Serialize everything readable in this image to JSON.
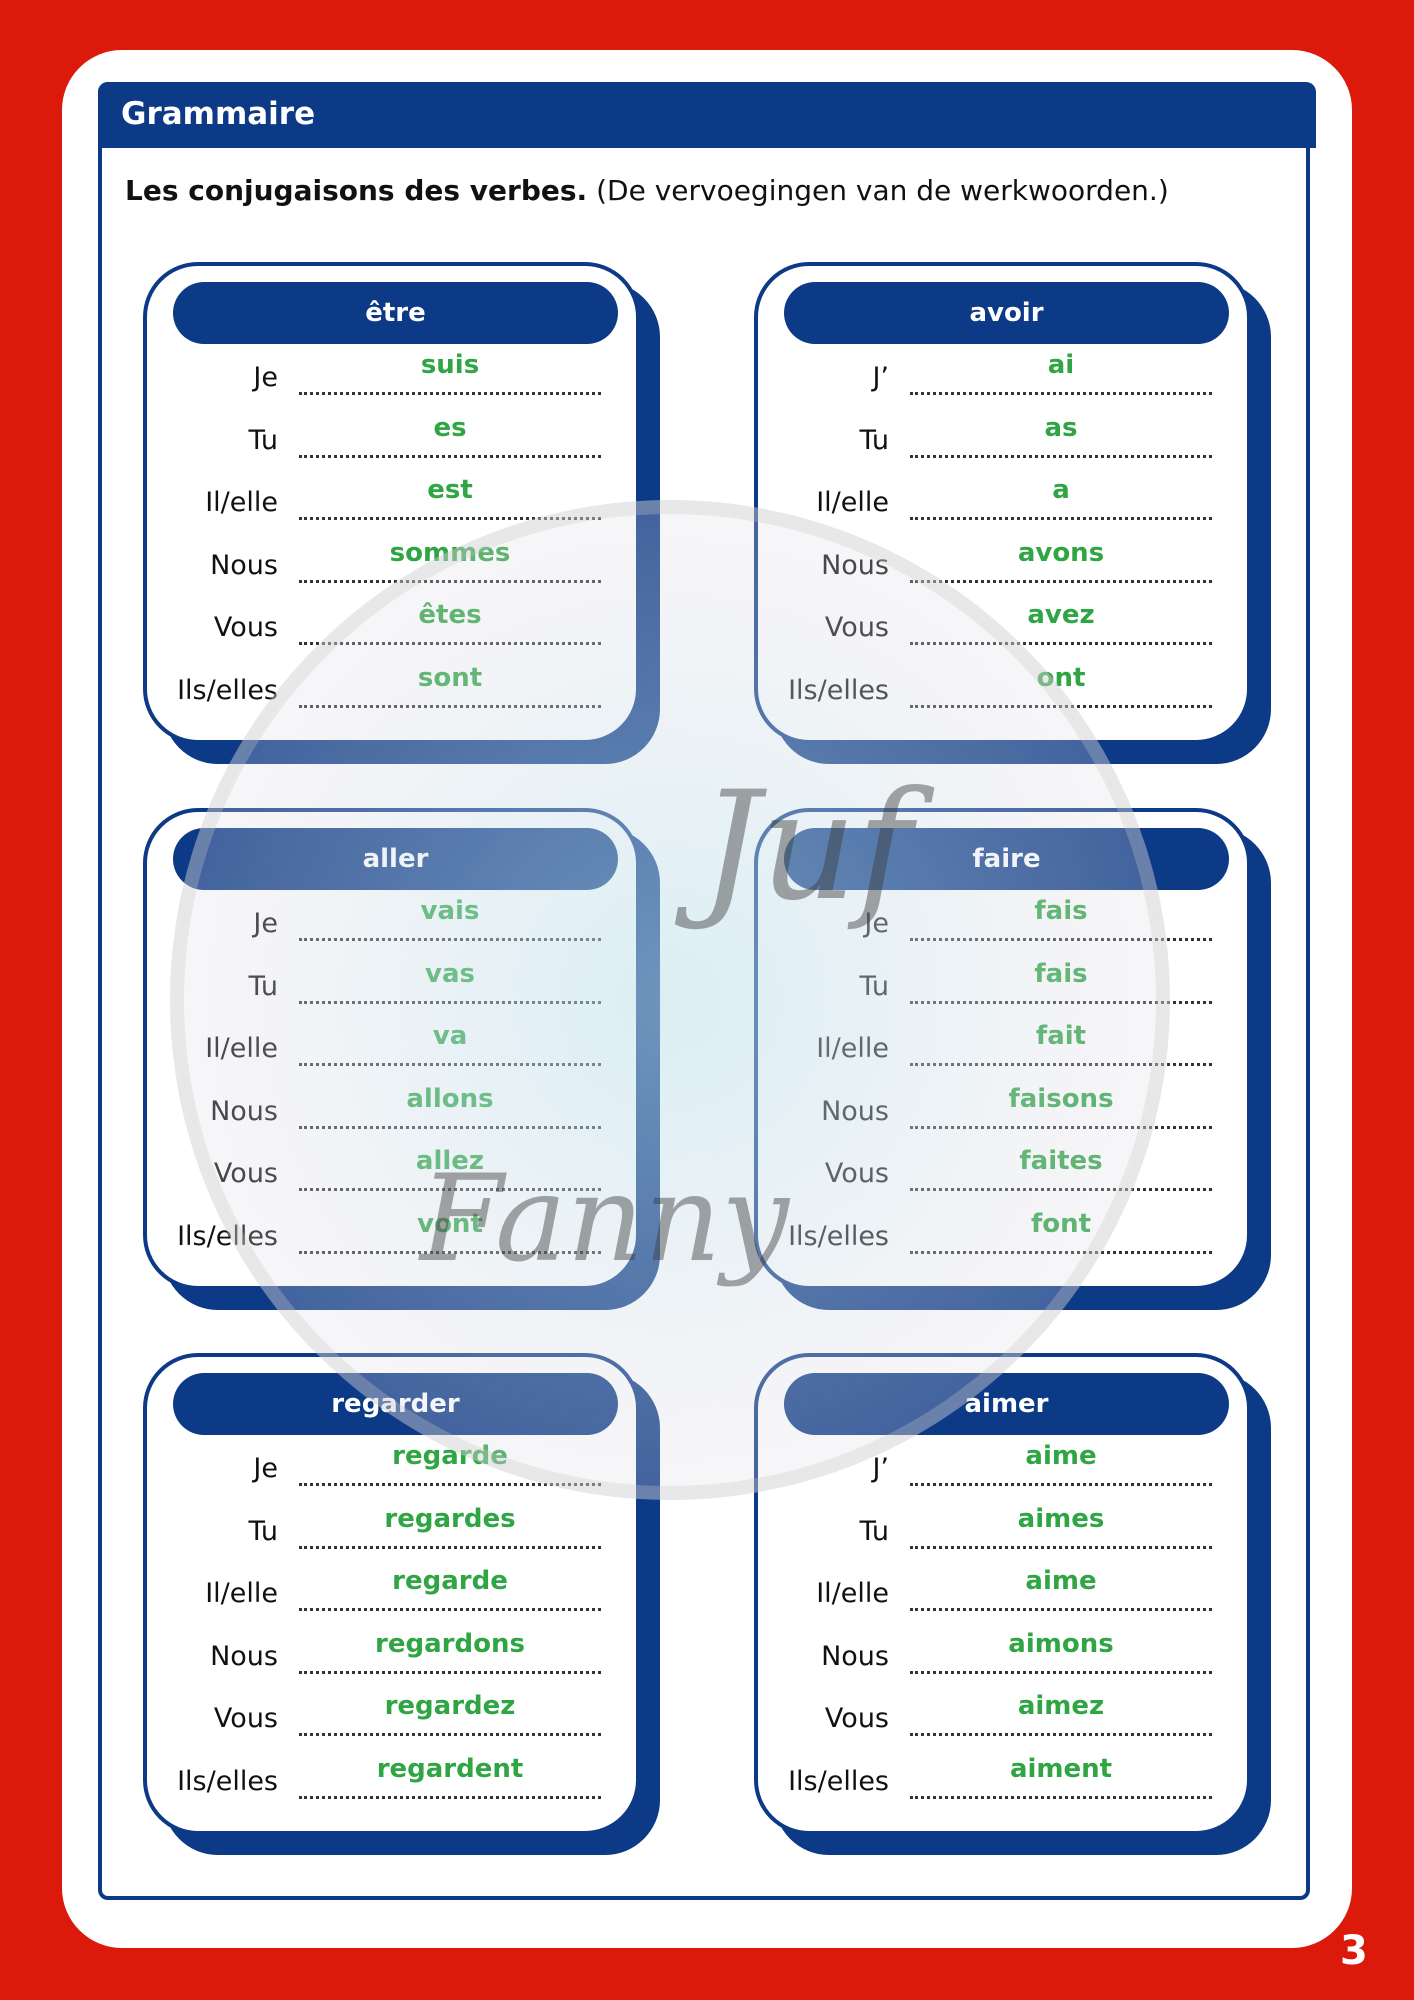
{
  "header": {
    "title": "Grammaire"
  },
  "instruction": {
    "bold": "Les conjugaisons des verbes.",
    "text": "(De vervoegingen van de werkwoorden.)"
  },
  "cards": [
    {
      "verb": "être",
      "rows": [
        {
          "pronoun": "Je",
          "answer": "suis"
        },
        {
          "pronoun": "Tu",
          "answer": "es"
        },
        {
          "pronoun": "Il/elle",
          "answer": "est"
        },
        {
          "pronoun": "Nous",
          "answer": "sommes"
        },
        {
          "pronoun": "Vous",
          "answer": "êtes"
        },
        {
          "pronoun": "Ils/elles",
          "answer": "sont"
        }
      ]
    },
    {
      "verb": "avoir",
      "rows": [
        {
          "pronoun": "J’",
          "answer": "ai"
        },
        {
          "pronoun": "Tu",
          "answer": "as"
        },
        {
          "pronoun": "Il/elle",
          "answer": "a"
        },
        {
          "pronoun": "Nous",
          "answer": "avons"
        },
        {
          "pronoun": "Vous",
          "answer": "avez"
        },
        {
          "pronoun": "Ils/elles",
          "answer": "ont"
        }
      ]
    },
    {
      "verb": "aller",
      "rows": [
        {
          "pronoun": "Je",
          "answer": "vais"
        },
        {
          "pronoun": "Tu",
          "answer": "vas"
        },
        {
          "pronoun": "Il/elle",
          "answer": "va"
        },
        {
          "pronoun": "Nous",
          "answer": "allons"
        },
        {
          "pronoun": "Vous",
          "answer": "allez"
        },
        {
          "pronoun": "Ils/elles",
          "answer": "vont"
        }
      ]
    },
    {
      "verb": "faire",
      "rows": [
        {
          "pronoun": "Je",
          "answer": "fais"
        },
        {
          "pronoun": "Tu",
          "answer": "fais"
        },
        {
          "pronoun": "Il/elle",
          "answer": "fait"
        },
        {
          "pronoun": "Nous",
          "answer": "faisons"
        },
        {
          "pronoun": "Vous",
          "answer": "faites"
        },
        {
          "pronoun": "Ils/elles",
          "answer": "font"
        }
      ]
    },
    {
      "verb": "regarder",
      "rows": [
        {
          "pronoun": "Je",
          "answer": "regarde"
        },
        {
          "pronoun": "Tu",
          "answer": "regardes"
        },
        {
          "pronoun": "Il/elle",
          "answer": "regarde"
        },
        {
          "pronoun": "Nous",
          "answer": "regardons"
        },
        {
          "pronoun": "Vous",
          "answer": "regardez"
        },
        {
          "pronoun": "Ils/elles",
          "answer": "regardent"
        }
      ]
    },
    {
      "verb": "aimer",
      "rows": [
        {
          "pronoun": "J’",
          "answer": "aime"
        },
        {
          "pronoun": "Tu",
          "answer": "aimes"
        },
        {
          "pronoun": "Il/elle",
          "answer": "aime"
        },
        {
          "pronoun": "Nous",
          "answer": "aimons"
        },
        {
          "pronoun": "Vous",
          "answer": "aimez"
        },
        {
          "pronoun": "Ils/elles",
          "answer": "aiment"
        }
      ]
    }
  ],
  "watermark": {
    "top": "Juf",
    "bottom": "Fanny"
  },
  "page_number": "3"
}
